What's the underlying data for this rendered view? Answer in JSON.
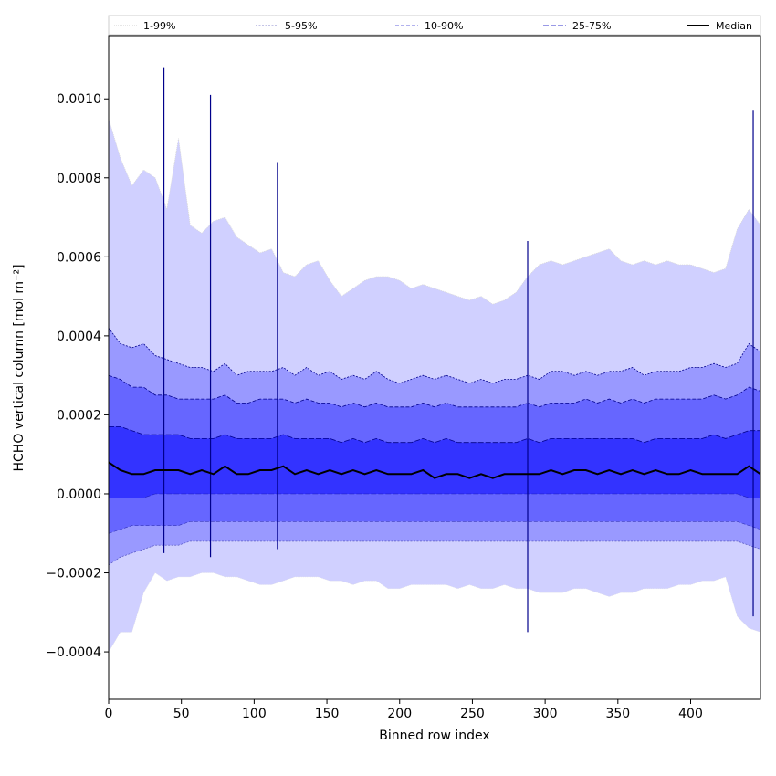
{
  "chart_data": {
    "type": "area",
    "xlabel": "Binned row index",
    "ylabel": "HCHO vertical column [mol m⁻²]",
    "xlim": [
      0,
      448
    ],
    "ylim": [
      -0.00052,
      0.00116
    ],
    "xticks": [
      0,
      50,
      100,
      150,
      200,
      250,
      300,
      350,
      400
    ],
    "xtick_labels": [
      "0",
      "50",
      "100",
      "150",
      "200",
      "250",
      "300",
      "350",
      "400"
    ],
    "yticks": [
      -0.0004,
      -0.0002,
      0.0,
      0.0002,
      0.0004,
      0.0006,
      0.0008,
      0.001
    ],
    "ytick_labels": [
      "−0.0004",
      "−0.0002",
      "0.0000",
      "0.0002",
      "0.0004",
      "0.0006",
      "0.0008",
      "0.0010"
    ],
    "grid": false,
    "legend_position": "top (above plot, single row)",
    "x_step": 8,
    "bands": [
      {
        "name": "1-99%",
        "fill": "#d0d0ff",
        "line": "#d8d8d8",
        "dash": "1,1",
        "upper": [
          0.00095,
          0.00085,
          0.00078,
          0.00082,
          0.0008,
          0.00072,
          0.0009,
          0.00068,
          0.00066,
          0.00069,
          0.0007,
          0.00065,
          0.00063,
          0.00061,
          0.00062,
          0.00056,
          0.00055,
          0.00058,
          0.00059,
          0.00054,
          0.0005,
          0.00052,
          0.00054,
          0.00055,
          0.00055,
          0.00054,
          0.00052,
          0.00053,
          0.00052,
          0.00051,
          0.0005,
          0.00049,
          0.0005,
          0.00048,
          0.00049,
          0.00051,
          0.00055,
          0.00058,
          0.00059,
          0.00058,
          0.00059,
          0.0006,
          0.00061,
          0.00062,
          0.00059,
          0.00058,
          0.00059,
          0.00058,
          0.00059,
          0.00058,
          0.00058,
          0.00057,
          0.00056,
          0.00057,
          0.00067,
          0.00072,
          0.00068
        ],
        "lower": [
          -0.0004,
          -0.00035,
          -0.00035,
          -0.00025,
          -0.0002,
          -0.00022,
          -0.00021,
          -0.00021,
          -0.0002,
          -0.0002,
          -0.00021,
          -0.00021,
          -0.00022,
          -0.00023,
          -0.00023,
          -0.00022,
          -0.00021,
          -0.00021,
          -0.00021,
          -0.00022,
          -0.00022,
          -0.00023,
          -0.00022,
          -0.00022,
          -0.00024,
          -0.00024,
          -0.00023,
          -0.00023,
          -0.00023,
          -0.00023,
          -0.00024,
          -0.00023,
          -0.00024,
          -0.00024,
          -0.00023,
          -0.00024,
          -0.00024,
          -0.00025,
          -0.00025,
          -0.00025,
          -0.00024,
          -0.00024,
          -0.00025,
          -0.00026,
          -0.00025,
          -0.00025,
          -0.00024,
          -0.00024,
          -0.00024,
          -0.00023,
          -0.00023,
          -0.00022,
          -0.00022,
          -0.00021,
          -0.00031,
          -0.00034,
          -0.00035
        ]
      },
      {
        "name": "5-95%",
        "fill": "#9999ff",
        "line": "#00008b",
        "dash": "2,1.5",
        "upper": [
          0.00042,
          0.00038,
          0.00037,
          0.00038,
          0.00035,
          0.00034,
          0.00033,
          0.00032,
          0.00032,
          0.00031,
          0.00033,
          0.0003,
          0.00031,
          0.00031,
          0.00031,
          0.00032,
          0.0003,
          0.00032,
          0.0003,
          0.00031,
          0.00029,
          0.0003,
          0.00029,
          0.00031,
          0.00029,
          0.00028,
          0.00029,
          0.0003,
          0.00029,
          0.0003,
          0.00029,
          0.00028,
          0.00029,
          0.00028,
          0.00029,
          0.00029,
          0.0003,
          0.00029,
          0.00031,
          0.00031,
          0.0003,
          0.00031,
          0.0003,
          0.00031,
          0.00031,
          0.00032,
          0.0003,
          0.00031,
          0.00031,
          0.00031,
          0.00032,
          0.00032,
          0.00033,
          0.00032,
          0.00033,
          0.00038,
          0.00036
        ],
        "lower": [
          -0.00018,
          -0.00016,
          -0.00015,
          -0.00014,
          -0.00013,
          -0.00013,
          -0.00013,
          -0.00012,
          -0.00012,
          -0.00012,
          -0.00012,
          -0.00012,
          -0.00012,
          -0.00012,
          -0.00012,
          -0.00012,
          -0.00012,
          -0.00012,
          -0.00012,
          -0.00012,
          -0.00012,
          -0.00012,
          -0.00012,
          -0.00012,
          -0.00012,
          -0.00012,
          -0.00012,
          -0.00012,
          -0.00012,
          -0.00012,
          -0.00012,
          -0.00012,
          -0.00012,
          -0.00012,
          -0.00012,
          -0.00012,
          -0.00012,
          -0.00012,
          -0.00012,
          -0.00012,
          -0.00012,
          -0.00012,
          -0.00012,
          -0.00012,
          -0.00012,
          -0.00012,
          -0.00012,
          -0.00012,
          -0.00012,
          -0.00012,
          -0.00012,
          -0.00012,
          -0.00012,
          -0.00012,
          -0.00012,
          -0.00013,
          -0.00014
        ]
      },
      {
        "name": "10-90%",
        "fill": "#6666ff",
        "line": "#00008b",
        "dash": "4,2",
        "upper": [
          0.0003,
          0.00029,
          0.00027,
          0.00027,
          0.00025,
          0.00025,
          0.00024,
          0.00024,
          0.00024,
          0.00024,
          0.00025,
          0.00023,
          0.00023,
          0.00024,
          0.00024,
          0.00024,
          0.00023,
          0.00024,
          0.00023,
          0.00023,
          0.00022,
          0.00023,
          0.00022,
          0.00023,
          0.00022,
          0.00022,
          0.00022,
          0.00023,
          0.00022,
          0.00023,
          0.00022,
          0.00022,
          0.00022,
          0.00022,
          0.00022,
          0.00022,
          0.00023,
          0.00022,
          0.00023,
          0.00023,
          0.00023,
          0.00024,
          0.00023,
          0.00024,
          0.00023,
          0.00024,
          0.00023,
          0.00024,
          0.00024,
          0.00024,
          0.00024,
          0.00024,
          0.00025,
          0.00024,
          0.00025,
          0.00027,
          0.00026
        ],
        "lower": [
          -0.0001,
          -9e-05,
          -8e-05,
          -8e-05,
          -8e-05,
          -8e-05,
          -8e-05,
          -7e-05,
          -7e-05,
          -7e-05,
          -7e-05,
          -7e-05,
          -7e-05,
          -7e-05,
          -7e-05,
          -7e-05,
          -7e-05,
          -7e-05,
          -7e-05,
          -7e-05,
          -7e-05,
          -7e-05,
          -7e-05,
          -7e-05,
          -7e-05,
          -7e-05,
          -7e-05,
          -7e-05,
          -7e-05,
          -7e-05,
          -7e-05,
          -7e-05,
          -7e-05,
          -7e-05,
          -7e-05,
          -7e-05,
          -7e-05,
          -7e-05,
          -7e-05,
          -7e-05,
          -7e-05,
          -7e-05,
          -7e-05,
          -7e-05,
          -7e-05,
          -7e-05,
          -7e-05,
          -7e-05,
          -7e-05,
          -7e-05,
          -7e-05,
          -7e-05,
          -7e-05,
          -7e-05,
          -7e-05,
          -8e-05,
          -9e-05
        ]
      },
      {
        "name": "25-75%",
        "fill": "#3333ff",
        "line": "#00008b",
        "dash": "6,2",
        "upper": [
          0.00017,
          0.00017,
          0.00016,
          0.00015,
          0.00015,
          0.00015,
          0.00015,
          0.00014,
          0.00014,
          0.00014,
          0.00015,
          0.00014,
          0.00014,
          0.00014,
          0.00014,
          0.00015,
          0.00014,
          0.00014,
          0.00014,
          0.00014,
          0.00013,
          0.00014,
          0.00013,
          0.00014,
          0.00013,
          0.00013,
          0.00013,
          0.00014,
          0.00013,
          0.00014,
          0.00013,
          0.00013,
          0.00013,
          0.00013,
          0.00013,
          0.00013,
          0.00014,
          0.00013,
          0.00014,
          0.00014,
          0.00014,
          0.00014,
          0.00014,
          0.00014,
          0.00014,
          0.00014,
          0.00013,
          0.00014,
          0.00014,
          0.00014,
          0.00014,
          0.00014,
          0.00015,
          0.00014,
          0.00015,
          0.00016,
          0.00016
        ],
        "lower": [
          -1e-05,
          -1e-05,
          -1e-05,
          -1e-05,
          0.0,
          0.0,
          0.0,
          0.0,
          0.0,
          0.0,
          0.0,
          0.0,
          0.0,
          0.0,
          0.0,
          0.0,
          0.0,
          0.0,
          0.0,
          0.0,
          0.0,
          0.0,
          0.0,
          0.0,
          0.0,
          0.0,
          0.0,
          0.0,
          0.0,
          0.0,
          0.0,
          0.0,
          0.0,
          0.0,
          0.0,
          0.0,
          0.0,
          0.0,
          0.0,
          0.0,
          0.0,
          0.0,
          0.0,
          0.0,
          0.0,
          0.0,
          0.0,
          0.0,
          0.0,
          0.0,
          0.0,
          0.0,
          0.0,
          0.0,
          0.0,
          -1e-05,
          -1e-05
        ]
      }
    ],
    "median": {
      "name": "Median",
      "color": "#000000",
      "values": [
        8e-05,
        6e-05,
        5e-05,
        5e-05,
        6e-05,
        6e-05,
        6e-05,
        5e-05,
        6e-05,
        5e-05,
        7e-05,
        5e-05,
        5e-05,
        6e-05,
        6e-05,
        7e-05,
        5e-05,
        6e-05,
        5e-05,
        6e-05,
        5e-05,
        6e-05,
        5e-05,
        6e-05,
        5e-05,
        5e-05,
        5e-05,
        6e-05,
        4e-05,
        5e-05,
        5e-05,
        4e-05,
        5e-05,
        4e-05,
        5e-05,
        5e-05,
        5e-05,
        5e-05,
        6e-05,
        5e-05,
        6e-05,
        6e-05,
        5e-05,
        6e-05,
        5e-05,
        6e-05,
        5e-05,
        6e-05,
        5e-05,
        5e-05,
        6e-05,
        5e-05,
        5e-05,
        5e-05,
        5e-05,
        7e-05,
        5e-05
      ]
    },
    "spikes": [
      {
        "x": 38,
        "top": 0.00108,
        "bottom": -0.00015
      },
      {
        "x": 70,
        "top": 0.00101,
        "bottom": -0.00016
      },
      {
        "x": 116,
        "top": 0.00084,
        "bottom": -0.00014
      },
      {
        "x": 288,
        "top": 0.00064,
        "bottom": -0.00035
      },
      {
        "x": 443,
        "top": 0.00097,
        "bottom": -0.00031
      }
    ],
    "legend": [
      "1-99%",
      "5-95%",
      "10-90%",
      "25-75%",
      "Median"
    ]
  }
}
